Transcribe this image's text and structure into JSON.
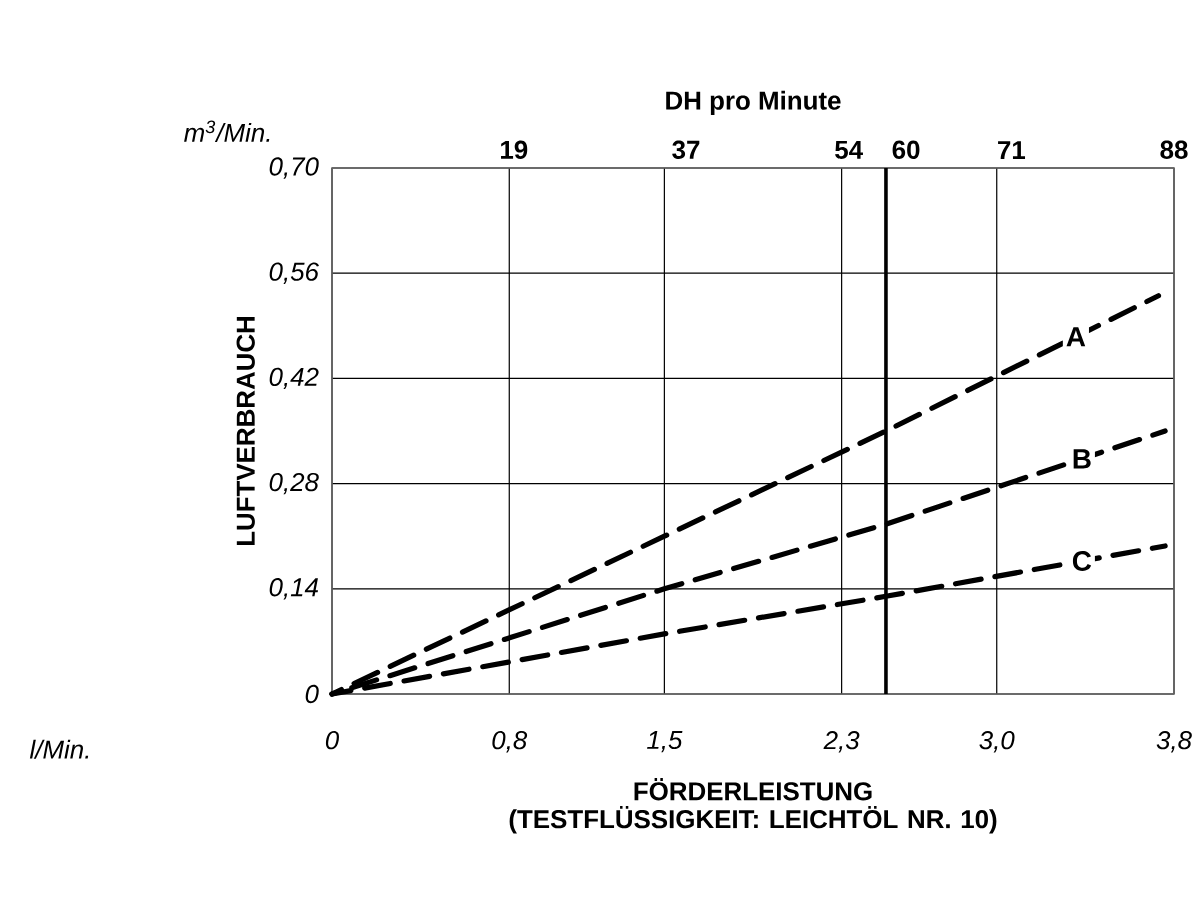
{
  "chart_data": {
    "type": "line",
    "x2label": "DH pro Minute",
    "xlabel": "FÖRDERLEISTUNG (TESTFLÜSSIGKEIT: LEICHTÖL NR. 10)",
    "ylabel": "LUFTVERBRAUCH",
    "annotations": [
      "m$^{3}$/Min.",
      "l/Min."
    ],
    "xlim": [
      0,
      3.8
    ],
    "ylim": [
      0,
      0.7
    ],
    "xticks": [
      0,
      {
        "value": 0.8,
        "label": "0,8"
      },
      {
        "value": 1.5,
        "label": "1,5"
      },
      {
        "value": 2.3,
        "label": "2,3"
      },
      {
        "value": 3.0,
        "label": "3,0"
      },
      {
        "value": 3.8,
        "label": "3,8"
      }
    ],
    "yticks": [
      0,
      {
        "value": 0.14,
        "label": "0,14"
      },
      {
        "value": 0.28,
        "label": "0,28"
      },
      {
        "value": 0.42,
        "label": "0,42"
      },
      {
        "value": 0.56,
        "label": "0,56"
      },
      {
        "value": 0.7,
        "label": "0,70"
      }
    ],
    "x2lim": [
      0,
      88
    ],
    "x2ticks": [
      19,
      37,
      54,
      60,
      71,
      88
    ],
    "ref_lines": [
      {
        "axis": "x",
        "value": 2.5,
        "color": "#000000"
      }
    ],
    "grid": true,
    "line_style": "dashed",
    "series": [
      {
        "name": "A",
        "color": "#000000",
        "x": [
          0,
          1.5,
          2.5,
          3.73
        ],
        "values": [
          0,
          0.21,
          0.35,
          0.53
        ]
      },
      {
        "name": "B",
        "color": "#000000",
        "x": [
          0,
          1.5,
          2.5,
          3.76
        ],
        "values": [
          0,
          0.14,
          0.226,
          0.35
        ]
      },
      {
        "name": "C",
        "color": "#000000",
        "x": [
          0,
          1.5,
          2.5,
          3.76
        ],
        "values": [
          0,
          0.08,
          0.13,
          0.197
        ]
      }
    ]
  }
}
